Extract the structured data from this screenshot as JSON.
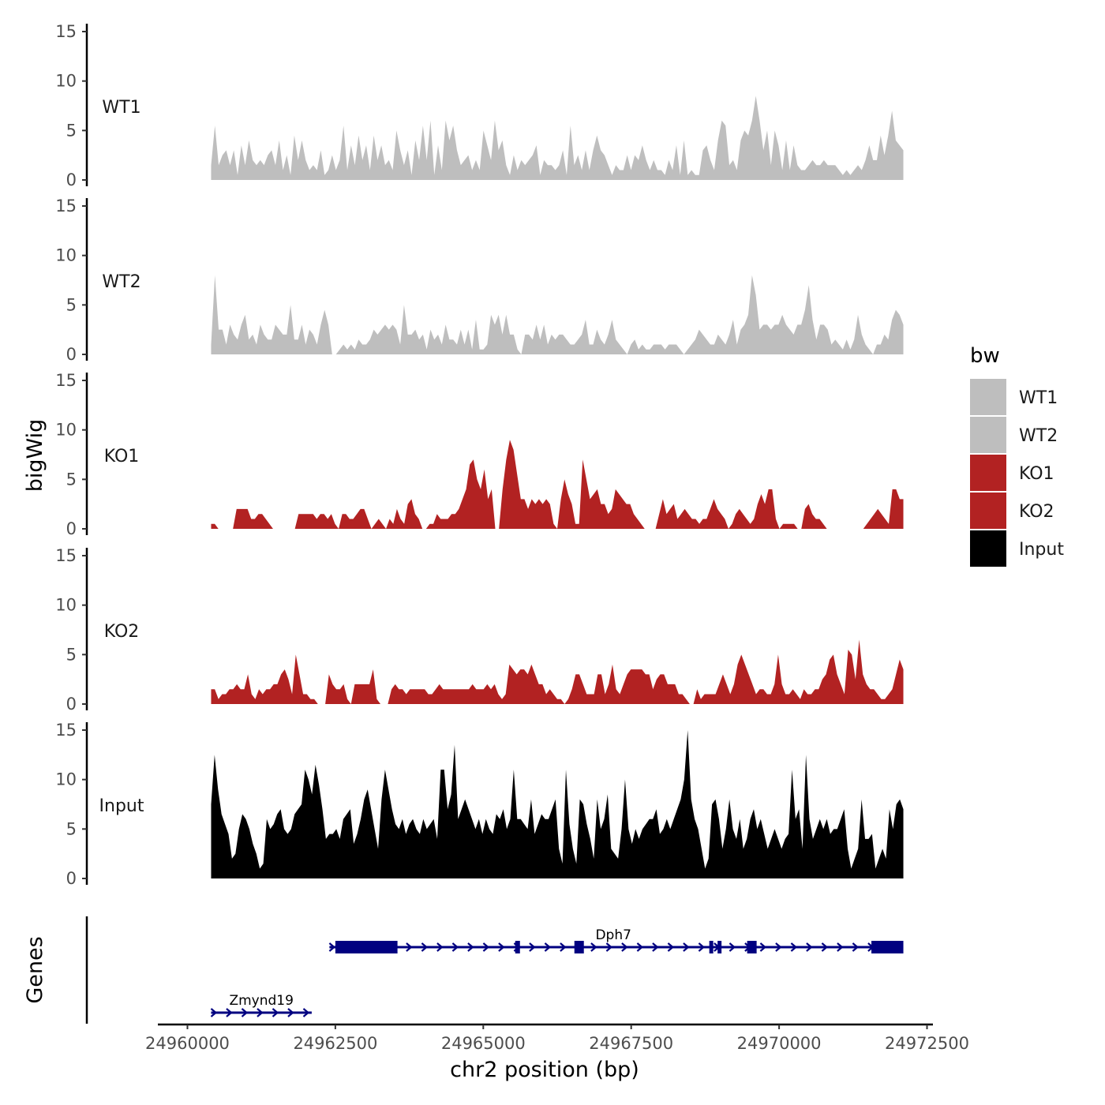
{
  "chart_data": {
    "type": "area",
    "chromosome": "chr2",
    "xlabel": "chr2 position (bp)",
    "ylabel": "bigWig",
    "gene_track_label": "Genes",
    "xlim": [
      24959500,
      24972600
    ],
    "signal_range": [
      24960400,
      24972100
    ],
    "x_ticks": [
      24960000,
      24962500,
      24965000,
      24967500,
      24970000,
      24972500
    ],
    "x_tick_labels": [
      "24960000",
      "24962500",
      "24965000",
      "24967500",
      "24970000",
      "24972500"
    ],
    "ylim": [
      0,
      15
    ],
    "y_ticks": [
      0,
      5,
      10,
      15
    ],
    "y_tick_labels": [
      "0",
      "5",
      "10",
      "15"
    ],
    "legend": {
      "title": "bw",
      "entries": [
        {
          "label": "WT1",
          "color": "#bebebe"
        },
        {
          "label": "WT2",
          "color": "#bebebe"
        },
        {
          "label": "KO1",
          "color": "#b22222"
        },
        {
          "label": "KO2",
          "color": "#b22222"
        },
        {
          "label": "Input",
          "color": "#000000"
        }
      ]
    },
    "series": [
      {
        "name": "WT1",
        "color": "#bebebe",
        "values": [
          1.5,
          5.5,
          1.5,
          2.5,
          3,
          1.5,
          3,
          0.5,
          3.5,
          1.5,
          4,
          2,
          1.5,
          2,
          1.5,
          2.5,
          3,
          1.5,
          4,
          1,
          2.5,
          0.5,
          4.5,
          2,
          4,
          2,
          1,
          1.5,
          1,
          3,
          0.5,
          1,
          2.5,
          1,
          2,
          5.5,
          1,
          3.5,
          1.5,
          4.5,
          2,
          3.5,
          1,
          4.5,
          2,
          3.5,
          1.5,
          2,
          1,
          5,
          3,
          1.5,
          3,
          0.5,
          4,
          2,
          5.5,
          2,
          6,
          0.5,
          3.5,
          1,
          6,
          4,
          5.5,
          3,
          1.5,
          2,
          2.5,
          1,
          2,
          1,
          5,
          3.5,
          2,
          6,
          3,
          4,
          1.5,
          0.5,
          2.5,
          1,
          2,
          1.5,
          2,
          2.5,
          3.5,
          0.5,
          2,
          1.5,
          1.5,
          1,
          1.5,
          3,
          0.5,
          5.5,
          1.5,
          2.5,
          1,
          3,
          1,
          3,
          4.5,
          3,
          2.5,
          1.5,
          0.5,
          1.5,
          1,
          1,
          2.5,
          1,
          2.5,
          2,
          3.5,
          2,
          1,
          2,
          1,
          1,
          0.5,
          2,
          1,
          3.5,
          0.5,
          4,
          0.5,
          1,
          0.5,
          0.5,
          3,
          3.5,
          2,
          1,
          4,
          6,
          5.5,
          1.5,
          2,
          1,
          4,
          5,
          4.5,
          6,
          8.5,
          6,
          3,
          5,
          1.5,
          5,
          3.5,
          1,
          4,
          1,
          3.5,
          1.5,
          1,
          1,
          1.5,
          2,
          1.5,
          1.5,
          2,
          1.5,
          1.5,
          1.5,
          1,
          0.5,
          1,
          0.5,
          1,
          1.5,
          1,
          2,
          3.5,
          2,
          2,
          4.5,
          2.5,
          4.5,
          7,
          4,
          3.5,
          3
        ]
      },
      {
        "name": "WT2",
        "color": "#bebebe",
        "values": [
          1,
          8,
          2.5,
          2.5,
          1,
          3,
          2,
          1.5,
          3,
          4,
          1.5,
          2,
          1,
          3,
          2,
          1.5,
          1.5,
          3,
          2.5,
          2,
          2,
          5,
          1.5,
          1.5,
          3,
          1,
          2.5,
          2,
          1,
          3,
          4.5,
          3,
          0,
          0,
          0.5,
          1,
          0.5,
          1,
          0.5,
          1.5,
          1,
          1,
          1.5,
          2.5,
          2,
          2.5,
          3,
          2.5,
          3,
          2.5,
          1,
          5,
          2,
          2,
          2.5,
          1.5,
          2,
          0.5,
          2.5,
          1.5,
          2,
          1,
          3,
          1.5,
          1.5,
          1,
          2.5,
          1,
          2.5,
          0.5,
          3.5,
          0.5,
          0.5,
          1,
          4,
          3,
          4,
          2,
          4,
          2,
          2,
          0.5,
          0,
          2,
          2,
          1.5,
          3,
          1.5,
          3,
          1,
          2,
          1.5,
          2,
          2,
          1.5,
          1,
          1,
          1.5,
          2,
          3.5,
          1,
          1,
          2.5,
          1.5,
          1,
          2,
          3.5,
          1.5,
          1,
          0.5,
          0,
          1,
          1.5,
          0.5,
          1,
          0.5,
          0.5,
          1,
          1,
          1,
          0.5,
          1,
          1,
          1,
          0.5,
          0,
          0.5,
          1,
          1.5,
          2.5,
          2,
          1.5,
          1,
          1,
          2,
          1.5,
          1,
          2,
          3.5,
          1,
          2.5,
          3,
          4,
          8,
          6,
          2.5,
          3,
          3,
          2.5,
          3,
          3,
          4,
          3,
          2.5,
          2,
          3,
          3,
          4.5,
          7,
          3.5,
          1.5,
          3,
          3,
          2.5,
          1,
          1.5,
          1,
          0.5,
          1.5,
          0.5,
          1.5,
          4,
          2,
          1,
          0.5,
          0,
          1,
          1,
          2,
          1.5,
          3.5,
          4.5,
          4,
          3
        ]
      },
      {
        "name": "KO1",
        "color": "#b22222",
        "values": [
          0.5,
          0.5,
          0,
          0,
          0,
          0,
          0,
          2,
          2,
          2,
          2,
          1,
          1,
          1.5,
          1.5,
          1,
          0.5,
          0,
          0,
          0,
          0,
          0,
          0,
          0,
          1.5,
          1.5,
          1.5,
          1.5,
          1.5,
          1,
          1.5,
          1.5,
          1,
          1.5,
          0.5,
          0,
          1.5,
          1.5,
          1,
          1,
          1.5,
          2,
          2,
          1,
          0,
          0.5,
          1,
          0.5,
          0,
          1,
          0.5,
          2,
          1,
          0.5,
          2.5,
          3,
          1.5,
          1,
          0,
          0,
          0.5,
          0.5,
          1.5,
          1,
          1,
          1,
          1.5,
          1.5,
          2,
          3,
          4,
          6.5,
          7,
          5,
          4,
          6,
          3,
          4,
          0,
          0,
          4,
          7,
          9,
          8,
          5.5,
          3,
          3,
          2,
          3,
          2.5,
          3,
          2.5,
          3,
          2.5,
          0.5,
          0,
          3,
          5,
          3.5,
          2.5,
          0.5,
          0.5,
          7,
          5,
          3,
          3.5,
          4,
          2.5,
          2.5,
          1.5,
          2,
          4,
          3.5,
          3,
          2.5,
          2.5,
          1.5,
          1,
          0.5,
          0,
          0,
          0,
          0,
          1.5,
          3,
          1.5,
          2,
          2.5,
          1,
          1.5,
          2,
          1.5,
          1,
          1,
          0.5,
          1,
          1,
          2,
          3,
          2,
          1.5,
          1,
          0,
          0.5,
          1.5,
          2,
          1.5,
          1,
          0.5,
          1,
          2.5,
          3.5,
          2.5,
          4,
          4,
          1,
          0,
          0.5,
          0.5,
          0.5,
          0.5,
          0,
          0,
          2,
          2.5,
          1.5,
          1,
          1,
          0.5,
          0,
          0,
          0,
          0,
          0,
          0,
          0,
          0,
          0,
          0,
          0,
          0.5,
          1,
          1.5,
          2,
          1.5,
          1,
          0.5,
          4,
          4,
          3,
          3
        ]
      },
      {
        "name": "KO2",
        "color": "#b22222",
        "values": [
          1.5,
          1.5,
          0.5,
          1,
          1,
          1.5,
          1.5,
          2,
          1.5,
          1.5,
          3,
          1,
          0.5,
          1.5,
          1,
          1.5,
          1.5,
          2,
          2,
          3,
          3.5,
          2.5,
          1,
          5,
          3,
          1,
          1,
          0.5,
          0.5,
          0,
          0,
          0,
          3,
          2,
          1.5,
          1.5,
          2,
          0.5,
          0,
          2,
          2,
          2,
          2,
          2,
          3.5,
          0.5,
          0,
          0,
          0,
          1.5,
          2,
          1.5,
          1.5,
          1,
          1.5,
          1.5,
          1.5,
          1.5,
          1.5,
          1,
          1,
          1.5,
          2,
          1.5,
          1.5,
          1.5,
          1.5,
          1.5,
          1.5,
          1.5,
          1.5,
          2,
          1.5,
          1.5,
          1.5,
          2,
          1.5,
          2,
          1,
          0.5,
          1,
          4,
          3.5,
          3,
          3.5,
          3.5,
          3,
          4,
          3,
          2,
          2,
          1,
          1.5,
          1,
          0.5,
          0.5,
          0,
          0.5,
          1.5,
          3,
          3,
          2,
          1,
          1,
          1,
          3,
          3,
          1,
          2,
          4,
          1.5,
          1,
          2,
          3,
          3.5,
          3.5,
          3.5,
          3.5,
          3,
          3,
          1.5,
          2.5,
          3,
          3,
          2,
          2,
          2,
          1,
          1,
          0.5,
          0,
          0,
          1.5,
          0.5,
          1,
          1,
          1,
          1,
          2,
          3,
          2,
          1,
          2,
          4,
          5,
          4,
          3,
          2,
          1,
          1.5,
          1.5,
          1,
          1,
          2,
          5,
          2,
          1,
          1,
          1.5,
          1,
          0.5,
          1.5,
          1,
          1,
          1.5,
          1.5,
          2.5,
          3,
          4.5,
          5,
          3,
          2,
          1,
          5.5,
          5,
          2.5,
          6.5,
          3,
          2,
          1.5,
          1.5,
          1,
          0.5,
          0.5,
          1,
          1.5,
          3,
          4.5,
          3.5
        ]
      },
      {
        "name": "Input",
        "color": "#000000",
        "values": [
          7.5,
          12.5,
          9,
          6.5,
          5.5,
          4.5,
          2,
          2.5,
          5,
          6.5,
          6,
          5,
          3.5,
          2.5,
          1,
          1.5,
          6,
          5,
          5.5,
          6.5,
          7,
          5,
          4.5,
          5,
          6.5,
          7,
          7.5,
          11,
          10,
          8.5,
          11.5,
          9.5,
          7,
          4,
          4.5,
          4.5,
          5,
          4,
          6,
          6.5,
          7,
          3.5,
          4.5,
          6,
          8,
          9,
          7,
          5,
          3,
          8,
          11,
          9,
          7,
          5.5,
          5,
          6,
          4.5,
          5.5,
          6,
          5,
          4.5,
          6,
          5,
          5.5,
          6,
          4,
          11,
          11,
          7,
          8.5,
          13.5,
          6,
          7,
          8,
          7,
          6,
          5,
          6,
          4.5,
          6,
          5,
          4.5,
          6.5,
          6,
          7,
          5,
          6,
          11,
          6,
          6,
          5.5,
          5,
          8,
          4.5,
          5.5,
          6.5,
          6,
          6,
          7,
          8,
          3,
          1.5,
          11,
          5.5,
          3,
          1.5,
          8,
          7.5,
          5.5,
          4,
          2,
          8,
          5,
          6,
          8.5,
          3,
          2.5,
          2,
          5,
          10,
          5,
          3.5,
          5,
          4,
          5,
          5.5,
          6,
          6,
          7,
          4.5,
          5,
          6,
          5,
          6,
          7,
          8,
          10,
          15,
          8,
          6,
          5,
          3,
          1,
          2,
          7.5,
          8,
          6,
          3,
          5,
          8,
          5,
          4,
          6,
          3,
          4,
          6,
          7,
          5,
          6,
          4.5,
          3,
          4,
          5,
          4,
          3,
          4,
          4.5,
          11,
          6,
          7,
          3,
          12.5,
          6,
          4,
          5,
          6,
          5,
          6,
          4.5,
          5,
          5,
          6,
          7,
          3,
          1,
          2,
          3,
          8,
          4,
          4,
          4.5,
          1,
          2,
          3,
          2,
          7,
          5,
          7.5,
          8,
          7
        ]
      }
    ],
    "genes": [
      {
        "name": "Zmynd19",
        "start": 24960400,
        "end": 24962100,
        "strand": "+",
        "exons": []
      },
      {
        "name": "Dph7",
        "start": 24962400,
        "end": 24972100,
        "strand": "+",
        "exons": [
          [
            24962500,
            24963550
          ],
          [
            24965540,
            24965620
          ],
          [
            24966540,
            24966700
          ],
          [
            24968820,
            24968880
          ],
          [
            24968960,
            24969020
          ],
          [
            24969460,
            24969620
          ],
          [
            24971560,
            24972100
          ]
        ]
      }
    ]
  }
}
